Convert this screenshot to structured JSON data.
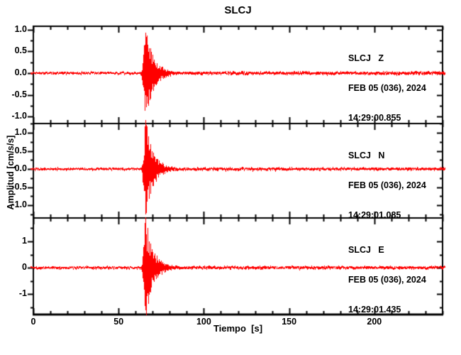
{
  "figure": {
    "background": "#ffffff",
    "frame_color": "#000000",
    "trace_color": "#ff0000",
    "text_color": "#000000"
  },
  "chart_data": {
    "type": "line",
    "title": "SLCJ",
    "xlabel": "Tiempo  [s]",
    "ylabel": "Amplitud [cm/s/s]",
    "x_range_s": [
      0,
      240
    ],
    "x_major_ticks": [
      0,
      50,
      100,
      150,
      200
    ],
    "x_minor_step_s": 10,
    "grid": false,
    "panels": [
      {
        "station_label": "SLCJ   Z",
        "date_label": "FEB 05 (036), 2024",
        "time_label": "14:29:00.855",
        "ylim": [
          -1.16,
          1.08
        ],
        "y_major_ticks": [
          1.0,
          0.5,
          0.0,
          -0.5,
          -1.0
        ],
        "y_tick_labels": [
          "1.0",
          "0.5",
          "0.0",
          "-0.5",
          "-1.0"
        ],
        "y_minor_step": 0.25,
        "envelope_model": {
          "noise_amp": 0.03,
          "event_onset_s": 62.5,
          "rise_s": 3,
          "peak_amp": 1.02,
          "peak_time_s": 66,
          "decay_tau_s": 4.2,
          "coda_amp": 0.1,
          "coda_tau_s": 14
        }
      },
      {
        "station_label": "SLCJ   N",
        "date_label": "FEB 05 (036), 2024",
        "time_label": "14:29:01.085",
        "ylim": [
          -1.35,
          1.255
        ],
        "y_major_ticks": [
          1.0,
          0.5,
          0.0,
          -0.5,
          -1.0
        ],
        "y_tick_labels": [
          "1.0",
          "0.5",
          "0.0",
          "-0.5",
          "-1.0"
        ],
        "y_minor_step": 0.25,
        "envelope_model": {
          "noise_amp": 0.034,
          "event_onset_s": 62.5,
          "rise_s": 3,
          "peak_amp": 1.32,
          "peak_time_s": 66,
          "decay_tau_s": 4.0,
          "coda_amp": 0.1,
          "coda_tau_s": 14
        }
      },
      {
        "station_label": "SLCJ   E",
        "date_label": "FEB 05 (036), 2024",
        "time_label": "14:29:01.435",
        "ylim": [
          -1.78,
          1.89
        ],
        "y_major_ticks": [
          1,
          0,
          -1
        ],
        "y_tick_labels": [
          "1",
          "0",
          "-1"
        ],
        "y_minor_step": 0.5,
        "envelope_model": {
          "noise_amp": 0.048,
          "event_onset_s": 62.5,
          "rise_s": 3,
          "peak_amp": 1.85,
          "peak_time_s": 66,
          "decay_tau_s": 4.0,
          "coda_amp": 0.1,
          "coda_tau_s": 14
        }
      }
    ]
  }
}
